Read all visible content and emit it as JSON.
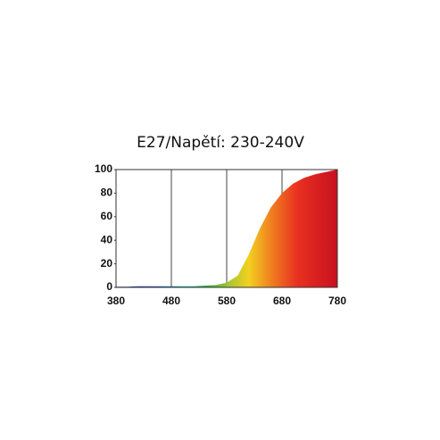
{
  "chart_data": {
    "type": "area",
    "title": "E27/Napětí: 230-240V",
    "x": [
      380,
      400,
      420,
      440,
      460,
      480,
      500,
      520,
      540,
      560,
      580,
      600,
      620,
      640,
      660,
      680,
      700,
      720,
      740,
      760,
      780
    ],
    "values": [
      0.5,
      0.5,
      1,
      1,
      1,
      1,
      1,
      1,
      1.5,
      2,
      4,
      10,
      28,
      50,
      68,
      80,
      88,
      93,
      96,
      98,
      100
    ],
    "xlim": [
      380,
      780
    ],
    "xticks": [
      380,
      480,
      580,
      680,
      780
    ],
    "ylim": [
      0,
      100
    ],
    "yticks": [
      0,
      20,
      40,
      60,
      80,
      100
    ],
    "grid": true
  }
}
